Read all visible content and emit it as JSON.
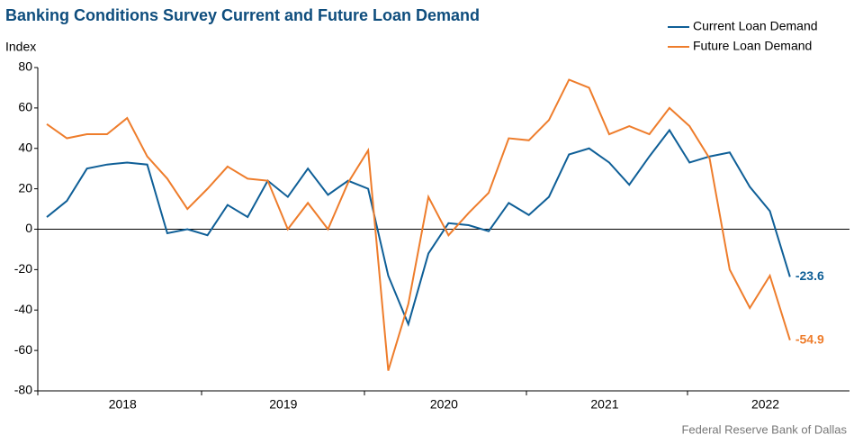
{
  "chart_data": {
    "type": "line",
    "title": "Banking Conditions Survey Current and Future Loan Demand",
    "y_label": "Index",
    "source": "Federal Reserve Bank of Dallas",
    "categories": [
      null,
      null,
      null,
      null,
      "2018",
      null,
      null,
      null,
      null,
      null,
      null,
      null,
      "2019",
      null,
      null,
      null,
      null,
      null,
      null,
      null,
      "2020",
      null,
      null,
      null,
      null,
      null,
      null,
      null,
      "2021",
      null,
      null,
      null,
      null,
      null,
      null,
      null,
      "2022",
      null
    ],
    "series": [
      {
        "name": "Current Loan Demand",
        "color": "#0f5f97",
        "values": [
          6,
          14,
          30,
          32,
          33,
          32,
          -2,
          0,
          -3,
          12,
          6,
          24,
          16,
          30,
          17,
          24,
          20,
          -23,
          -47,
          -12,
          3,
          2,
          -1,
          13,
          7,
          16,
          37,
          40,
          33,
          22,
          36,
          49,
          33,
          36,
          38,
          21,
          9,
          -23.6
        ]
      },
      {
        "name": "Future Loan Demand",
        "color": "#ee7d2c",
        "values": [
          52,
          45,
          47,
          47,
          55,
          36,
          25,
          10,
          20,
          31,
          25,
          24,
          0,
          13,
          0,
          23,
          39,
          -70,
          -37,
          16,
          -3,
          8,
          18,
          45,
          44,
          54,
          74,
          70,
          47,
          51,
          47,
          60,
          51,
          35,
          -20,
          -39,
          -23,
          -54.9
        ]
      }
    ],
    "ylim": [
      -80,
      80
    ],
    "yticks": [
      -80,
      -60,
      -40,
      -20,
      0,
      20,
      40,
      60,
      80
    ],
    "legend": "top-right",
    "end_labels": true
  }
}
